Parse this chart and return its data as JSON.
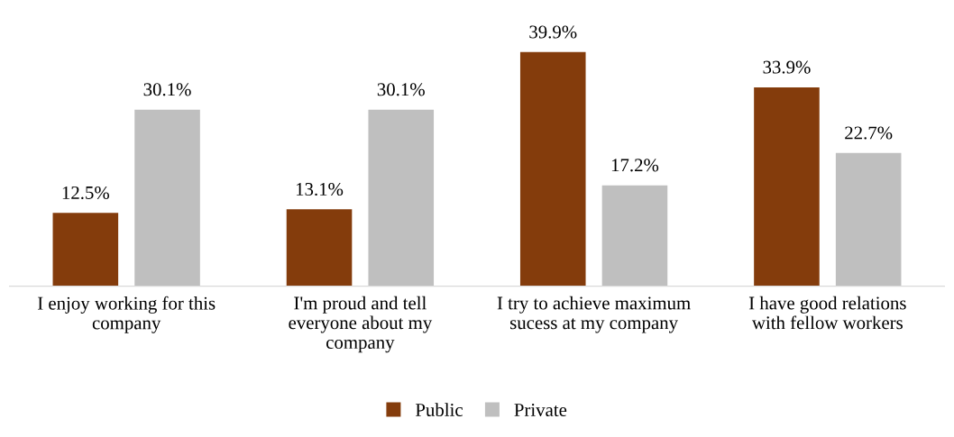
{
  "chart_data": {
    "type": "bar",
    "categories": [
      "I enjoy working for this company",
      "I'm proud and tell everyone about my company",
      "I try to achieve maximum sucess at my company",
      "I have good relations with fellow workers"
    ],
    "series": [
      {
        "name": "Public",
        "color": "#843c0c",
        "values": [
          12.5,
          13.1,
          39.9,
          33.9
        ],
        "value_labels": [
          "12.5%",
          "13.1%",
          "39.9%",
          "33.9%"
        ]
      },
      {
        "name": "Private",
        "color": "#bfbfbf",
        "values": [
          30.1,
          30.1,
          17.2,
          22.7
        ],
        "value_labels": [
          "30.1%",
          "30.1%",
          "17.2%",
          "22.7%"
        ]
      }
    ],
    "legend": "bottom",
    "grid": false
  }
}
